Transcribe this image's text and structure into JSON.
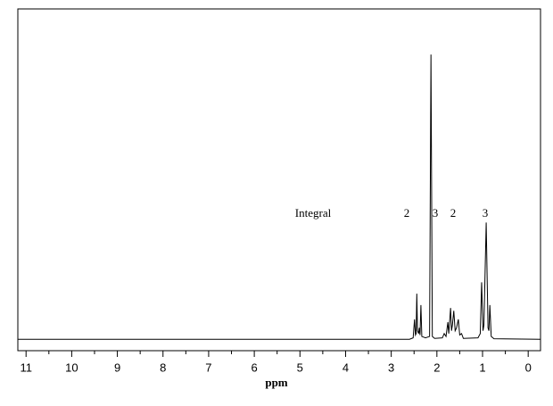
{
  "chart_data": {
    "type": "line",
    "x_label": "ppm",
    "annotation": "Integral",
    "integrals": [
      2,
      3,
      2,
      3
    ],
    "xlim": [
      11.18,
      -0.27
    ],
    "ylim": [
      -4,
      116
    ],
    "xticks": [
      11,
      10,
      9,
      8,
      7,
      6,
      5,
      4,
      3,
      2,
      1,
      0
    ],
    "xminorticks": [
      10.5,
      9.5,
      8.5,
      7.5,
      6.5,
      5.5,
      4.5,
      3.5,
      2.5,
      1.5,
      0.5
    ],
    "color": "#000000",
    "x": [
      11.18,
      2.6,
      2.52,
      2.49,
      2.47,
      2.455,
      2.44,
      2.425,
      2.4,
      2.385,
      2.37,
      2.35,
      2.33,
      2.25,
      2.16,
      2.13,
      2.1,
      2.05,
      1.88,
      1.84,
      1.8,
      1.76,
      1.74,
      1.7,
      1.68,
      1.66,
      1.63,
      1.6,
      1.57,
      1.53,
      1.5,
      1.46,
      1.42,
      1.1,
      1.05,
      1.02,
      0.99,
      0.97,
      0.92,
      0.88,
      0.86,
      0.84,
      0.81,
      0.75,
      -0.27
    ],
    "values": [
      0,
      0,
      0.5,
      7,
      1.5,
      2,
      16,
      3,
      2,
      4,
      1.5,
      12,
      1,
      0.5,
      1,
      100,
      1,
      0.3,
      0.5,
      2,
      1,
      6,
      2,
      11,
      3,
      5,
      10,
      3,
      4,
      7,
      1.5,
      2,
      0.3,
      0.5,
      2,
      20,
      3,
      5,
      41,
      4,
      3,
      12,
      1,
      0.2,
      0
    ]
  }
}
